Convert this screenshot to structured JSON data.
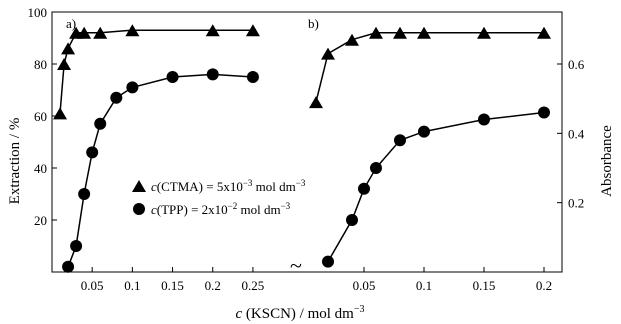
{
  "figure": {
    "x_axis_label": {
      "italic": "c",
      "rest": " (KSCN) / mol dm",
      "exp": "−3"
    },
    "left_axis_label": "Extraction / %",
    "right_axis_label": "Absorbance",
    "break_mark": "~",
    "legend": [
      {
        "marker": "triangle",
        "italic": "c",
        "rest": "(CTMA) = 5x10",
        "exp": "−3",
        "tail": " mol dm",
        "exp2": "−3"
      },
      {
        "marker": "circle",
        "italic": "c",
        "rest": "(TPP) = 2x10",
        "exp": "−2",
        "tail": " mol dm",
        "exp2": "−3"
      }
    ]
  },
  "chart_data": [
    {
      "type": "line",
      "panel_label": "a)",
      "xlabel": "c (KSCN) / mol dm−3",
      "ylabel": "Extraction / %",
      "xlim": [
        0,
        0.27
      ],
      "ylim": [
        0,
        100
      ],
      "x_ticks": [
        0.05,
        0.1,
        0.15,
        0.2,
        0.25
      ],
      "x_tick_labels": [
        "0.05",
        "0.1",
        "0.15",
        "0.2",
        "0.25"
      ],
      "y_ticks": [
        20,
        40,
        60,
        80,
        100
      ],
      "y_tick_labels": [
        "20",
        "40",
        "60",
        "80",
        "100"
      ],
      "legend_position": "lower-left",
      "series": [
        {
          "name": "c(CTMA) = 5x10−3 mol dm−3",
          "marker": "triangle",
          "points": [
            [
              0.01,
              61
            ],
            [
              0.015,
              80
            ],
            [
              0.02,
              86
            ],
            [
              0.03,
              92
            ],
            [
              0.04,
              92
            ],
            [
              0.06,
              92
            ],
            [
              0.1,
              93
            ],
            [
              0.2,
              93
            ],
            [
              0.25,
              93
            ]
          ]
        },
        {
          "name": "c(TPP) = 2x10−2 mol dm−3",
          "marker": "circle",
          "points": [
            [
              0.02,
              2
            ],
            [
              0.03,
              10
            ],
            [
              0.04,
              30
            ],
            [
              0.05,
              46
            ],
            [
              0.06,
              57
            ],
            [
              0.08,
              67
            ],
            [
              0.1,
              71
            ],
            [
              0.15,
              75
            ],
            [
              0.2,
              76
            ],
            [
              0.25,
              75
            ]
          ]
        }
      ]
    },
    {
      "type": "line",
      "panel_label": "b)",
      "xlabel": "c (KSCN) / mol dm−3",
      "ylabel": "Absorbance",
      "xlim": [
        0,
        0.215
      ],
      "ylim": [
        0,
        0.75
      ],
      "x_ticks": [
        0.05,
        0.1,
        0.15,
        0.2
      ],
      "x_tick_labels": [
        "0.05",
        "0.1",
        "0.15",
        "0.2"
      ],
      "y_ticks": [
        0.2,
        0.4,
        0.6
      ],
      "y_tick_labels": [
        "0.2",
        "0.4",
        "0.6"
      ],
      "series": [
        {
          "name": "c(CTMA) = 5x10−3 mol dm−3",
          "marker": "triangle",
          "points": [
            [
              0.01,
              0.49
            ],
            [
              0.02,
              0.63
            ],
            [
              0.04,
              0.67
            ],
            [
              0.06,
              0.69
            ],
            [
              0.08,
              0.69
            ],
            [
              0.1,
              0.69
            ],
            [
              0.15,
              0.69
            ],
            [
              0.2,
              0.69
            ]
          ]
        },
        {
          "name": "c(TPP) = 2x10−2 mol dm−3",
          "marker": "circle",
          "points": [
            [
              0.02,
              0.03
            ],
            [
              0.04,
              0.15
            ],
            [
              0.05,
              0.24
            ],
            [
              0.06,
              0.3
            ],
            [
              0.08,
              0.38
            ],
            [
              0.1,
              0.405
            ],
            [
              0.15,
              0.44
            ],
            [
              0.2,
              0.46
            ]
          ]
        }
      ]
    }
  ]
}
